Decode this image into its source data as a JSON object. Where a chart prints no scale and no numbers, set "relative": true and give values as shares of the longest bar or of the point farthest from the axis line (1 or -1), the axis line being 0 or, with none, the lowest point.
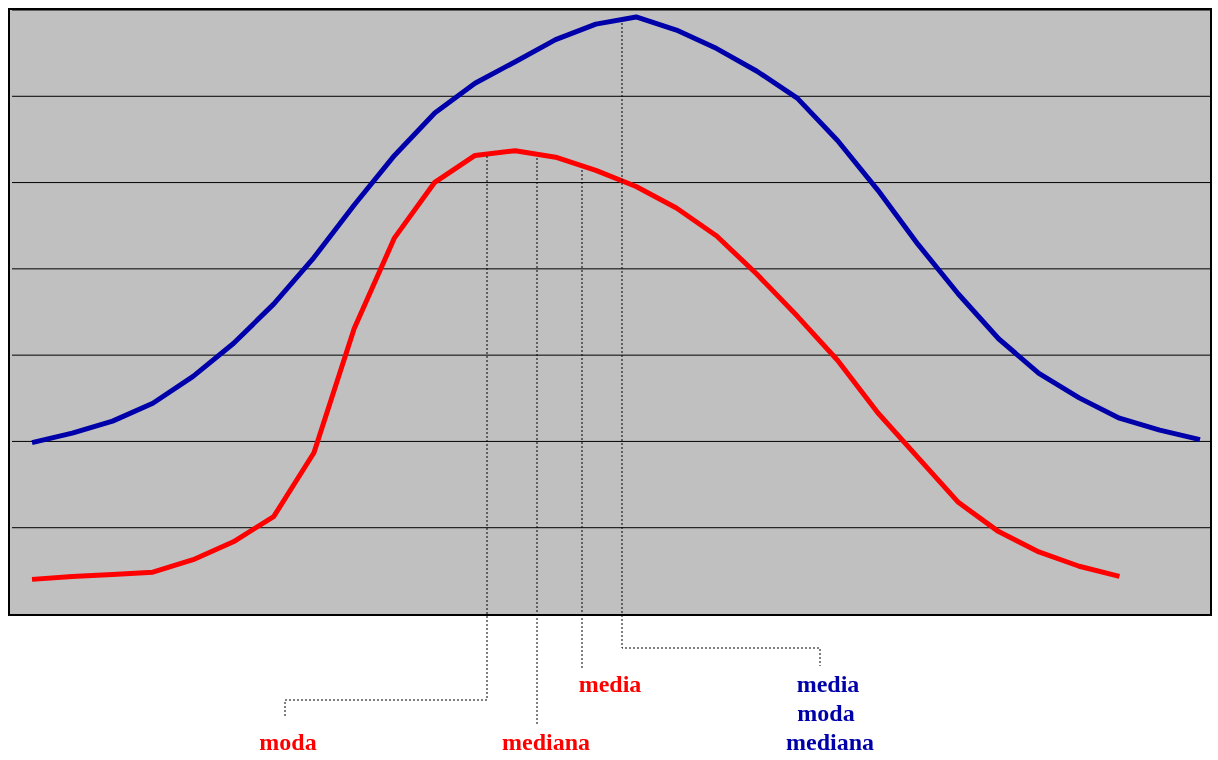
{
  "chart_data": {
    "type": "line",
    "relative": true,
    "grid": "y",
    "categories": [
      null,
      null,
      null,
      null,
      null,
      null,
      null,
      null,
      null,
      null,
      null,
      null,
      null,
      null,
      null,
      null,
      null,
      null,
      null,
      null,
      null,
      null,
      null,
      null,
      null,
      null,
      null,
      null,
      null,
      null
    ],
    "series": [
      {
        "color": "#0000aa",
        "values": [
          0.287,
          0.303,
          0.323,
          0.353,
          0.398,
          0.453,
          0.519,
          0.597,
          0.685,
          0.768,
          0.839,
          0.889,
          0.925,
          0.962,
          0.988,
          1,
          0.978,
          0.947,
          0.909,
          0.864,
          0.793,
          0.71,
          0.619,
          0.536,
          0.461,
          0.403,
          0.362,
          0.328,
          0.308,
          0.292
        ]
      },
      {
        "color": "#ff0000",
        "values": [
          0.058,
          0.063,
          0.066,
          0.07,
          0.091,
          0.121,
          0.163,
          0.27,
          0.478,
          0.63,
          0.723,
          0.768,
          0.776,
          0.765,
          0.743,
          0.716,
          0.68,
          0.633,
          0.569,
          0.499,
          0.425,
          0.337,
          0.262,
          0.187,
          0.138,
          0.104,
          0.08,
          0.063,
          null,
          null
        ]
      }
    ],
    "annotations": [
      "moda",
      "mediana",
      "media",
      "media",
      "moda",
      "mediana"
    ]
  }
}
